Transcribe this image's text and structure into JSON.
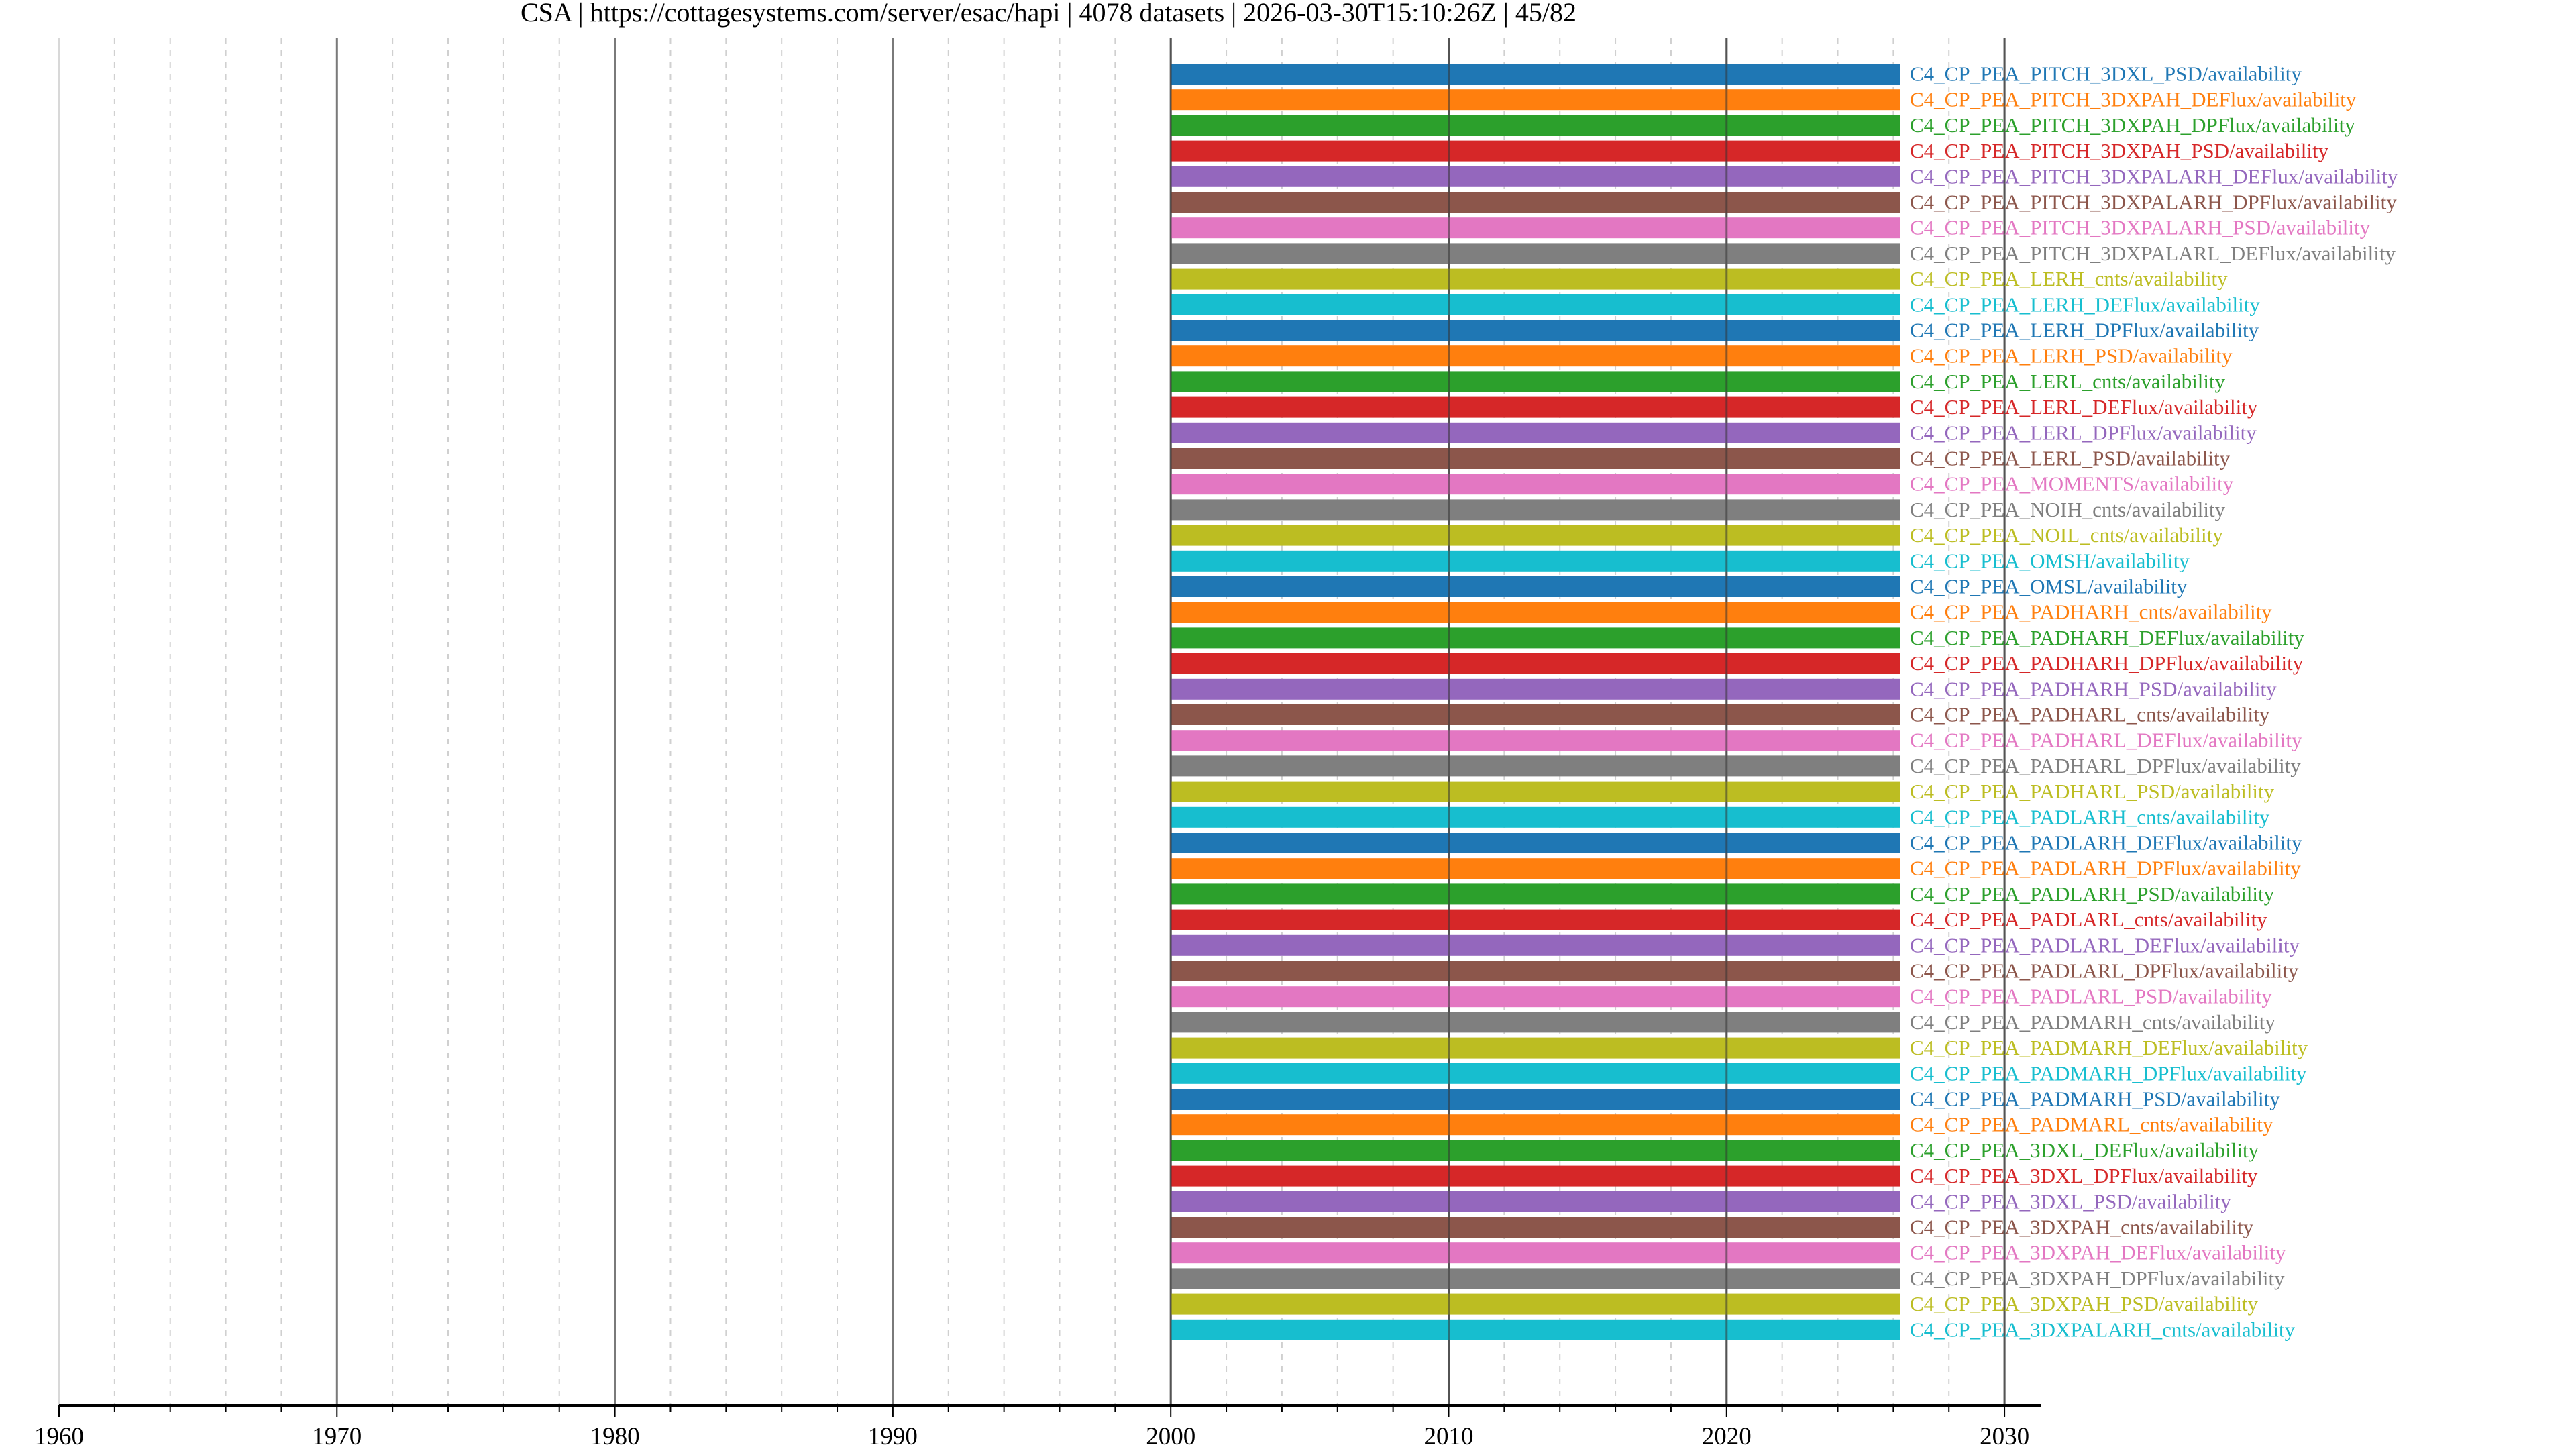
{
  "title": "CSA | https://cottagesystems.com/server/esac/hapi | 4078 datasets | 2026-03-30T15:10:26Z | 45/82",
  "chart_data": {
    "type": "bar",
    "orientation": "horizontal-timeline",
    "xlim": [
      1960,
      2031.3
    ],
    "x_ticks": [
      "1960",
      "1970",
      "1980",
      "1990",
      "2000",
      "2010",
      "2020",
      "2030"
    ],
    "x_minor_tick_step_years": 2,
    "grid": true,
    "colors": [
      "#1f77b4",
      "#ff7f0e",
      "#2ca02c",
      "#d62728",
      "#9467bd",
      "#8c564b",
      "#e377c2",
      "#7f7f7f",
      "#bcbd22",
      "#17becf"
    ],
    "series": [
      {
        "name": "C4_CP_PEA_PITCH_3DXL_PSD/availability",
        "start": 2000.0,
        "end": 2026.24
      },
      {
        "name": "C4_CP_PEA_PITCH_3DXPAH_DEFlux/availability",
        "start": 2000.0,
        "end": 2026.24
      },
      {
        "name": "C4_CP_PEA_PITCH_3DXPAH_DPFlux/availability",
        "start": 2000.0,
        "end": 2026.24
      },
      {
        "name": "C4_CP_PEA_PITCH_3DXPAH_PSD/availability",
        "start": 2000.0,
        "end": 2026.24
      },
      {
        "name": "C4_CP_PEA_PITCH_3DXPALARH_DEFlux/availability",
        "start": 2000.0,
        "end": 2026.24
      },
      {
        "name": "C4_CP_PEA_PITCH_3DXPALARH_DPFlux/availability",
        "start": 2000.0,
        "end": 2026.24
      },
      {
        "name": "C4_CP_PEA_PITCH_3DXPALARH_PSD/availability",
        "start": 2000.0,
        "end": 2026.24
      },
      {
        "name": "C4_CP_PEA_PITCH_3DXPALARL_DEFlux/availability",
        "start": 2000.0,
        "end": 2026.24
      },
      {
        "name": "C4_CP_PEA_LERH_cnts/availability",
        "start": 2000.0,
        "end": 2026.24
      },
      {
        "name": "C4_CP_PEA_LERH_DEFlux/availability",
        "start": 2000.0,
        "end": 2026.24
      },
      {
        "name": "C4_CP_PEA_LERH_DPFlux/availability",
        "start": 2000.0,
        "end": 2026.24
      },
      {
        "name": "C4_CP_PEA_LERH_PSD/availability",
        "start": 2000.0,
        "end": 2026.24
      },
      {
        "name": "C4_CP_PEA_LERL_cnts/availability",
        "start": 2000.0,
        "end": 2026.24
      },
      {
        "name": "C4_CP_PEA_LERL_DEFlux/availability",
        "start": 2000.0,
        "end": 2026.24
      },
      {
        "name": "C4_CP_PEA_LERL_DPFlux/availability",
        "start": 2000.0,
        "end": 2026.24
      },
      {
        "name": "C4_CP_PEA_LERL_PSD/availability",
        "start": 2000.0,
        "end": 2026.24
      },
      {
        "name": "C4_CP_PEA_MOMENTS/availability",
        "start": 2000.0,
        "end": 2026.24
      },
      {
        "name": "C4_CP_PEA_NOIH_cnts/availability",
        "start": 2000.0,
        "end": 2026.24
      },
      {
        "name": "C4_CP_PEA_NOIL_cnts/availability",
        "start": 2000.0,
        "end": 2026.24
      },
      {
        "name": "C4_CP_PEA_OMSH/availability",
        "start": 2000.0,
        "end": 2026.24
      },
      {
        "name": "C4_CP_PEA_OMSL/availability",
        "start": 2000.0,
        "end": 2026.24
      },
      {
        "name": "C4_CP_PEA_PADHARH_cnts/availability",
        "start": 2000.0,
        "end": 2026.24
      },
      {
        "name": "C4_CP_PEA_PADHARH_DEFlux/availability",
        "start": 2000.0,
        "end": 2026.24
      },
      {
        "name": "C4_CP_PEA_PADHARH_DPFlux/availability",
        "start": 2000.0,
        "end": 2026.24
      },
      {
        "name": "C4_CP_PEA_PADHARH_PSD/availability",
        "start": 2000.0,
        "end": 2026.24
      },
      {
        "name": "C4_CP_PEA_PADHARL_cnts/availability",
        "start": 2000.0,
        "end": 2026.24
      },
      {
        "name": "C4_CP_PEA_PADHARL_DEFlux/availability",
        "start": 2000.0,
        "end": 2026.24
      },
      {
        "name": "C4_CP_PEA_PADHARL_DPFlux/availability",
        "start": 2000.0,
        "end": 2026.24
      },
      {
        "name": "C4_CP_PEA_PADHARL_PSD/availability",
        "start": 2000.0,
        "end": 2026.24
      },
      {
        "name": "C4_CP_PEA_PADLARH_cnts/availability",
        "start": 2000.0,
        "end": 2026.24
      },
      {
        "name": "C4_CP_PEA_PADLARH_DEFlux/availability",
        "start": 2000.0,
        "end": 2026.24
      },
      {
        "name": "C4_CP_PEA_PADLARH_DPFlux/availability",
        "start": 2000.0,
        "end": 2026.24
      },
      {
        "name": "C4_CP_PEA_PADLARH_PSD/availability",
        "start": 2000.0,
        "end": 2026.24
      },
      {
        "name": "C4_CP_PEA_PADLARL_cnts/availability",
        "start": 2000.0,
        "end": 2026.24
      },
      {
        "name": "C4_CP_PEA_PADLARL_DEFlux/availability",
        "start": 2000.0,
        "end": 2026.24
      },
      {
        "name": "C4_CP_PEA_PADLARL_DPFlux/availability",
        "start": 2000.0,
        "end": 2026.24
      },
      {
        "name": "C4_CP_PEA_PADLARL_PSD/availability",
        "start": 2000.0,
        "end": 2026.24
      },
      {
        "name": "C4_CP_PEA_PADMARH_cnts/availability",
        "start": 2000.0,
        "end": 2026.24
      },
      {
        "name": "C4_CP_PEA_PADMARH_DEFlux/availability",
        "start": 2000.0,
        "end": 2026.24
      },
      {
        "name": "C4_CP_PEA_PADMARH_DPFlux/availability",
        "start": 2000.0,
        "end": 2026.24
      },
      {
        "name": "C4_CP_PEA_PADMARH_PSD/availability",
        "start": 2000.0,
        "end": 2026.24
      },
      {
        "name": "C4_CP_PEA_PADMARL_cnts/availability",
        "start": 2000.0,
        "end": 2026.24
      },
      {
        "name": "C4_CP_PEA_3DXL_DEFlux/availability",
        "start": 2000.0,
        "end": 2026.24
      },
      {
        "name": "C4_CP_PEA_3DXL_DPFlux/availability",
        "start": 2000.0,
        "end": 2026.24
      },
      {
        "name": "C4_CP_PEA_3DXL_PSD/availability",
        "start": 2000.0,
        "end": 2026.24
      },
      {
        "name": "C4_CP_PEA_3DXPAH_cnts/availability",
        "start": 2000.0,
        "end": 2026.24
      },
      {
        "name": "C4_CP_PEA_3DXPAH_DEFlux/availability",
        "start": 2000.0,
        "end": 2026.24
      },
      {
        "name": "C4_CP_PEA_3DXPAH_DPFlux/availability",
        "start": 2000.0,
        "end": 2026.24
      },
      {
        "name": "C4_CP_PEA_3DXPAH_PSD/availability",
        "start": 2000.0,
        "end": 2026.24
      },
      {
        "name": "C4_CP_PEA_3DXPALARH_cnts/availability",
        "start": 2000.0,
        "end": 2026.24
      }
    ]
  }
}
